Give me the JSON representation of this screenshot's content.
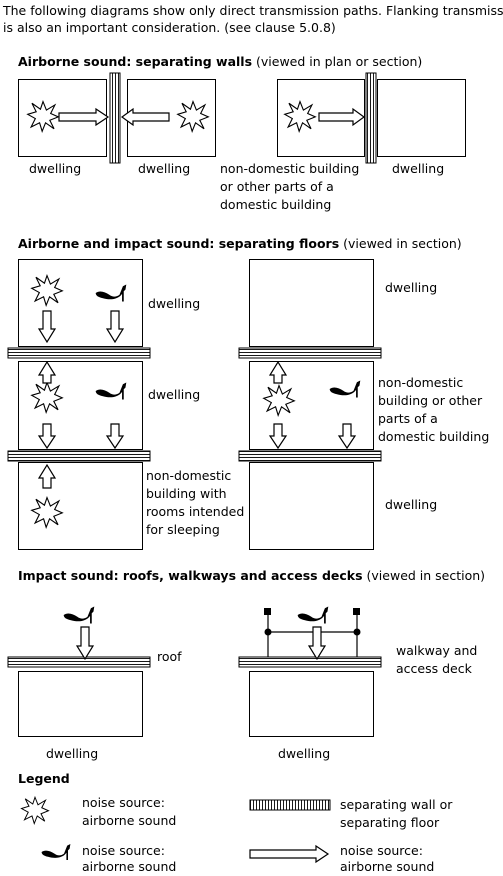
{
  "intro": {
    "line1": "The following diagrams show only direct transmission paths. Flanking transmission",
    "line2": "is also an important consideration. (see clause 5.0.8)"
  },
  "section1": {
    "title_bold": "Airborne sound: separating walls",
    "title_rest": "(viewed in plan or  section)",
    "labels": {
      "dwelling_a": "dwelling",
      "dwelling_b": "dwelling",
      "nondom_1": "non-domestic building",
      "nondom_2": "or other parts of a",
      "nondom_3": "domestic building",
      "dwelling_c": "dwelling"
    }
  },
  "section2": {
    "title_bold": "Airborne and impact sound: separating floors",
    "title_rest": "(viewed in section)",
    "labels": {
      "left_top": "dwelling",
      "left_mid": "dwelling",
      "left_bot_1": "non-domestic",
      "left_bot_2": "building with",
      "left_bot_3": "rooms intended",
      "left_bot_4": "for sleeping",
      "right_top": "dwelling",
      "right_mid_1": "non-domestic",
      "right_mid_2": "building or other",
      "right_mid_3": "parts of a",
      "right_mid_4": "domestic building",
      "right_bot": "dwelling"
    }
  },
  "section3": {
    "title_bold": "Impact sound: roofs, walkways and access decks",
    "title_rest": "(viewed in section)",
    "labels": {
      "roof": "roof",
      "walkway_1": "walkway and",
      "walkway_2": "access deck",
      "dwelling_left": "dwelling",
      "dwelling_right": "dwelling"
    }
  },
  "legend": {
    "title": "Legend",
    "items": {
      "star_1": "noise source:",
      "star_2": "airborne sound",
      "shoe_1": "noise source:",
      "shoe_2": "airborne sound",
      "wall_1": "separating wall or",
      "wall_2": "separating floor",
      "arrow_1": "noise source:",
      "arrow_2": "airborne sound"
    }
  }
}
